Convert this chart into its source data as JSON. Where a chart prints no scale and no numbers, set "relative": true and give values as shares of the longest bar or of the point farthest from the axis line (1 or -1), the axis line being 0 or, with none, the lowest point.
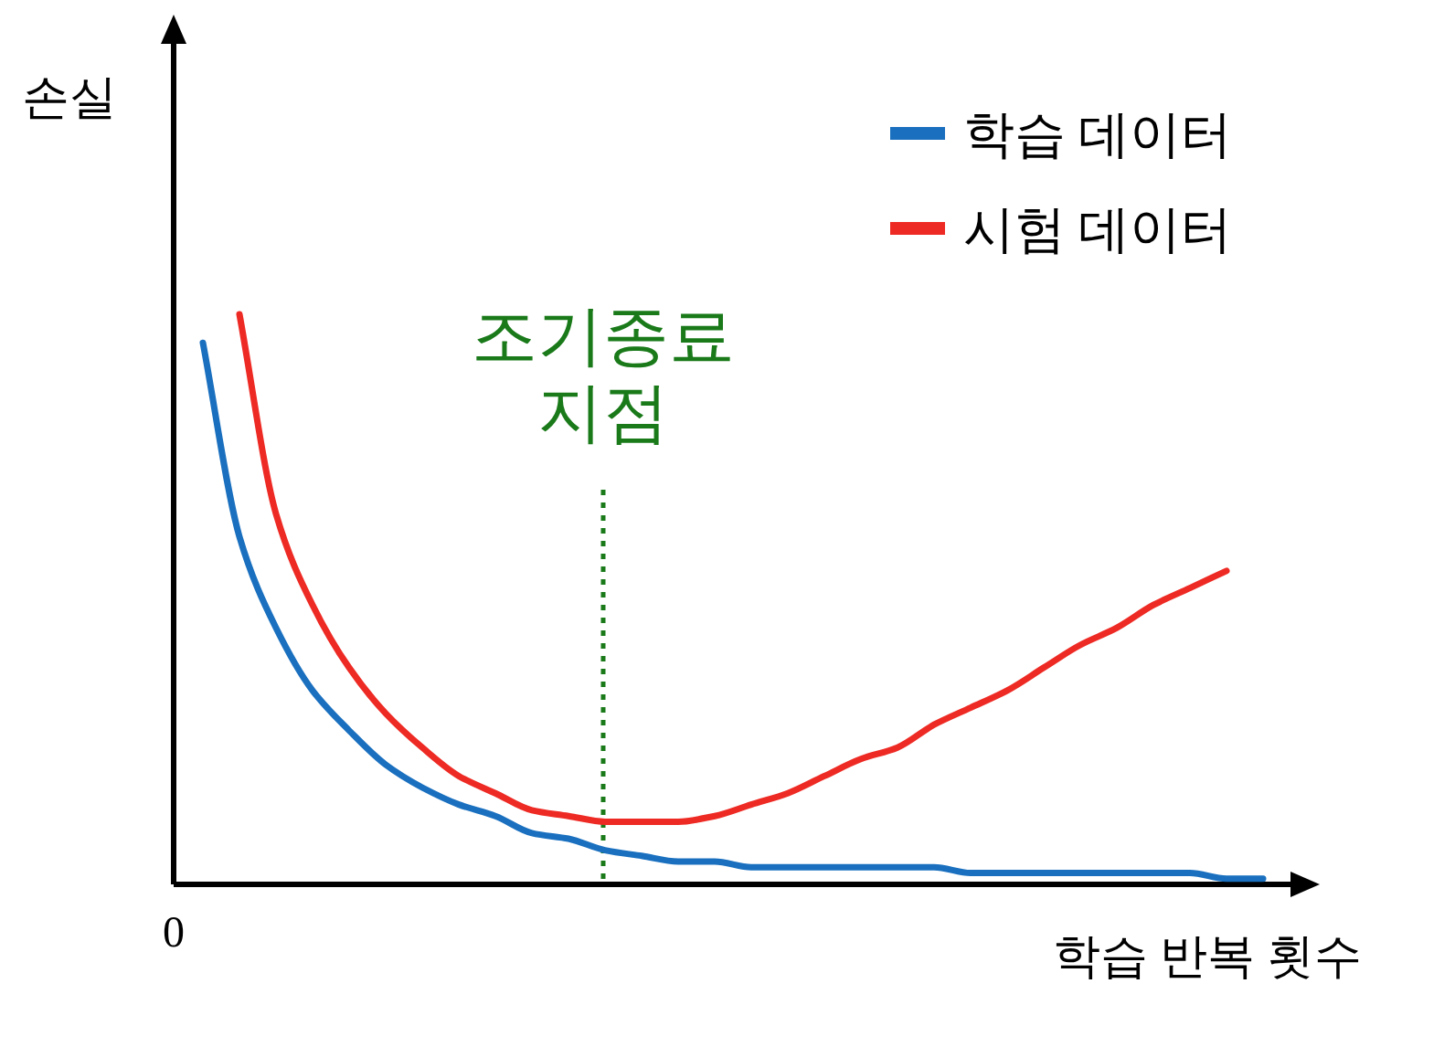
{
  "chart_data": {
    "type": "line",
    "relative": true,
    "ylabel": "손실",
    "xlabel": "학습 반복 횟수",
    "annotations": [
      "조기종료 지점",
      "0"
    ],
    "legend": "top right",
    "line_style": "solid",
    "categories": [
      null,
      null,
      null,
      null,
      null,
      null,
      null,
      null,
      null,
      null,
      null,
      null,
      null,
      null,
      null,
      null,
      null,
      null,
      null,
      null,
      null,
      null,
      null,
      null,
      null,
      null,
      null,
      null,
      null,
      null
    ],
    "series": [
      {
        "name": "학습 데이터",
        "color": "#1a70bf",
        "values": [
          0.95,
          0.61,
          0.45,
          0.34,
          0.27,
          0.21,
          0.17,
          0.14,
          0.12,
          0.09,
          0.08,
          0.06,
          0.05,
          0.04,
          0.04,
          0.03,
          0.03,
          0.03,
          0.03,
          0.03,
          0.03,
          0.02,
          0.02,
          0.02,
          0.02,
          0.02,
          0.02,
          0.02,
          0.01,
          0.01
        ]
      },
      {
        "name": "시험 데이터",
        "color": "#ee2a24",
        "values": [
          null,
          1.0,
          0.65,
          0.49,
          0.38,
          0.3,
          0.24,
          0.19,
          0.16,
          0.13,
          0.12,
          0.11,
          0.11,
          0.11,
          0.12,
          0.14,
          0.16,
          0.19,
          0.22,
          0.24,
          0.28,
          0.31,
          0.34,
          0.38,
          0.42,
          0.45,
          0.49,
          0.52,
          0.55,
          null
        ]
      }
    ]
  }
}
